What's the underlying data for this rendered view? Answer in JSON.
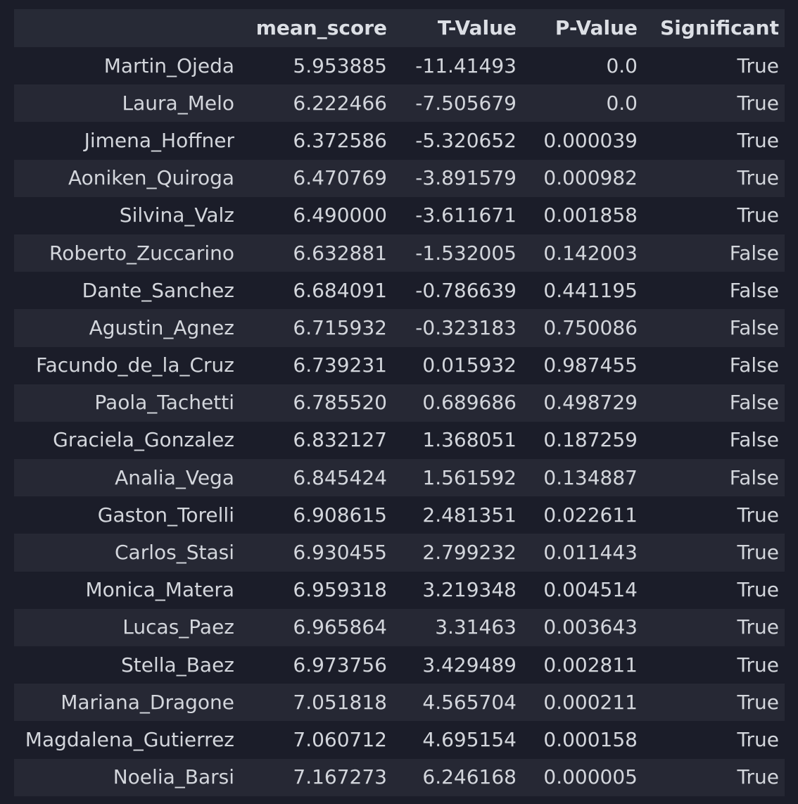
{
  "table": {
    "columns": [
      "",
      "mean_score",
      "T-Value",
      "P-Value",
      "Significant"
    ],
    "rows": [
      {
        "name": "Martin_Ojeda",
        "mean_score": "5.953885",
        "t_value": "-11.41493",
        "p_value": "0.0",
        "significant": "True"
      },
      {
        "name": "Laura_Melo",
        "mean_score": "6.222466",
        "t_value": "-7.505679",
        "p_value": "0.0",
        "significant": "True"
      },
      {
        "name": "Jimena_Hoffner",
        "mean_score": "6.372586",
        "t_value": "-5.320652",
        "p_value": "0.000039",
        "significant": "True"
      },
      {
        "name": "Aoniken_Quiroga",
        "mean_score": "6.470769",
        "t_value": "-3.891579",
        "p_value": "0.000982",
        "significant": "True"
      },
      {
        "name": "Silvina_Valz",
        "mean_score": "6.490000",
        "t_value": "-3.611671",
        "p_value": "0.001858",
        "significant": "True"
      },
      {
        "name": "Roberto_Zuccarino",
        "mean_score": "6.632881",
        "t_value": "-1.532005",
        "p_value": "0.142003",
        "significant": "False"
      },
      {
        "name": "Dante_Sanchez",
        "mean_score": "6.684091",
        "t_value": "-0.786639",
        "p_value": "0.441195",
        "significant": "False"
      },
      {
        "name": "Agustin_Agnez",
        "mean_score": "6.715932",
        "t_value": "-0.323183",
        "p_value": "0.750086",
        "significant": "False"
      },
      {
        "name": "Facundo_de_la_Cruz",
        "mean_score": "6.739231",
        "t_value": "0.015932",
        "p_value": "0.987455",
        "significant": "False"
      },
      {
        "name": "Paola_Tachetti",
        "mean_score": "6.785520",
        "t_value": "0.689686",
        "p_value": "0.498729",
        "significant": "False"
      },
      {
        "name": "Graciela_Gonzalez",
        "mean_score": "6.832127",
        "t_value": "1.368051",
        "p_value": "0.187259",
        "significant": "False"
      },
      {
        "name": "Analia_Vega",
        "mean_score": "6.845424",
        "t_value": "1.561592",
        "p_value": "0.134887",
        "significant": "False"
      },
      {
        "name": "Gaston_Torelli",
        "mean_score": "6.908615",
        "t_value": "2.481351",
        "p_value": "0.022611",
        "significant": "True"
      },
      {
        "name": "Carlos_Stasi",
        "mean_score": "6.930455",
        "t_value": "2.799232",
        "p_value": "0.011443",
        "significant": "True"
      },
      {
        "name": "Monica_Matera",
        "mean_score": "6.959318",
        "t_value": "3.219348",
        "p_value": "0.004514",
        "significant": "True"
      },
      {
        "name": "Lucas_Paez",
        "mean_score": "6.965864",
        "t_value": "3.31463",
        "p_value": "0.003643",
        "significant": "True"
      },
      {
        "name": "Stella_Baez",
        "mean_score": "6.973756",
        "t_value": "3.429489",
        "p_value": "0.002811",
        "significant": "True"
      },
      {
        "name": "Mariana_Dragone",
        "mean_score": "7.051818",
        "t_value": "4.565704",
        "p_value": "0.000211",
        "significant": "True"
      },
      {
        "name": "Magdalena_Gutierrez",
        "mean_score": "7.060712",
        "t_value": "4.695154",
        "p_value": "0.000158",
        "significant": "True"
      },
      {
        "name": "Noelia_Barsi",
        "mean_score": "7.167273",
        "t_value": "6.246168",
        "p_value": "0.000005",
        "significant": "True"
      }
    ]
  },
  "colors": {
    "background": "#1b1d29",
    "header_background": "#272a36",
    "stripe_background": "#262834",
    "text": "#d3d6dc"
  }
}
